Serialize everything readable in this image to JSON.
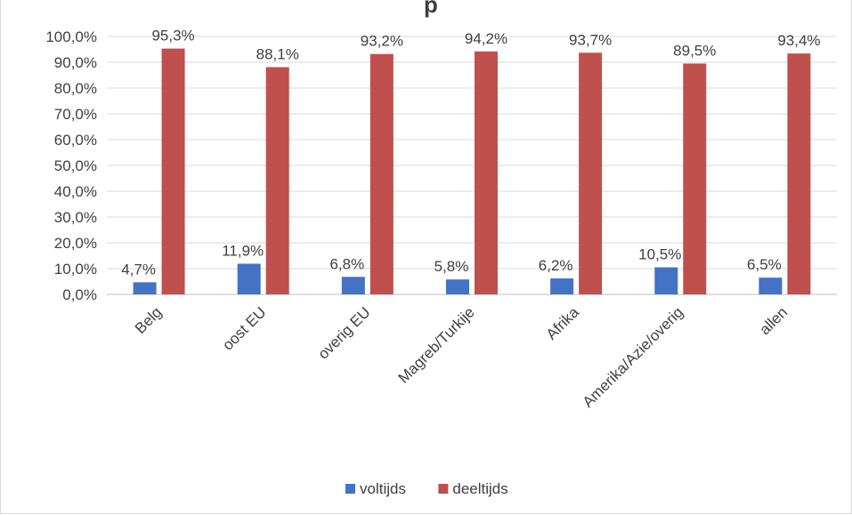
{
  "chart_data": {
    "type": "bar",
    "title": "",
    "title_fragment": "p",
    "categories": [
      "Belg",
      "oost EU",
      "overig EU",
      "Magreb/Turkije",
      "Afrika",
      "Amerika/Azie/overig",
      "allen"
    ],
    "series": [
      {
        "name": "voltijds",
        "color": "#4472c4",
        "values": [
          4.7,
          11.9,
          6.8,
          5.8,
          6.2,
          10.5,
          6.5
        ],
        "labels": [
          "4,7%",
          "11,9%",
          "6,8%",
          "5,8%",
          "6,2%",
          "10,5%",
          "6,5%"
        ]
      },
      {
        "name": "deeltijds",
        "color": "#c0504d",
        "values": [
          95.3,
          88.1,
          93.2,
          94.2,
          93.7,
          89.5,
          93.4
        ],
        "labels": [
          "95,3%",
          "88,1%",
          "93,2%",
          "94,2%",
          "93,7%",
          "89,5%",
          "93,4%"
        ]
      }
    ],
    "ylim": [
      0,
      100
    ],
    "yticks": [
      "0,0%",
      "10,0%",
      "20,0%",
      "30,0%",
      "40,0%",
      "50,0%",
      "60,0%",
      "70,0%",
      "80,0%",
      "90,0%",
      "100,0%"
    ],
    "grid": true,
    "legend_position": "bottom"
  }
}
